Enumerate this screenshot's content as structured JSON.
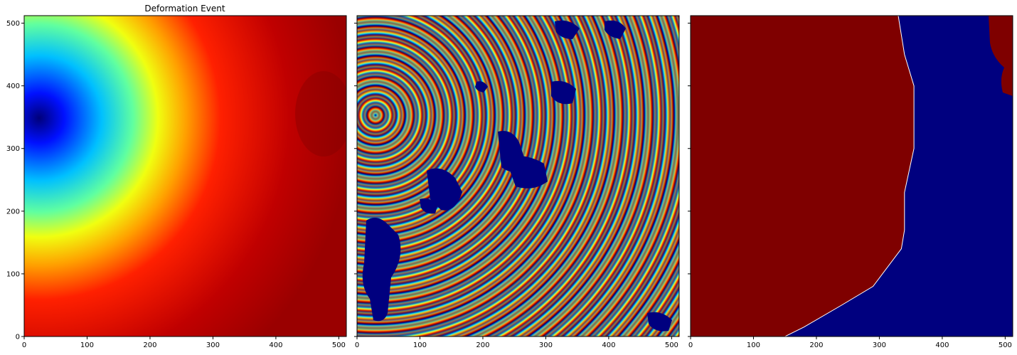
{
  "chart_data": [
    {
      "type": "heatmap",
      "panel": "deformation",
      "title": "Deformation Event",
      "xlim": [
        0,
        512
      ],
      "ylim": [
        0,
        512
      ],
      "x_ticks": [
        0,
        100,
        200,
        300,
        400,
        500
      ],
      "y_ticks": [
        0,
        100,
        200,
        300,
        400,
        500
      ],
      "x_tick_labels": [
        "0",
        "100",
        "200",
        "300",
        "400",
        "500"
      ],
      "y_tick_labels": [
        "0",
        "100",
        "200",
        "300",
        "400",
        "500"
      ],
      "colormap": "jet",
      "source_center": [
        40,
        350
      ]
    },
    {
      "type": "heatmap",
      "panel": "wrapped-interferogram",
      "title": "",
      "xlim": [
        0,
        512
      ],
      "ylim": [
        0,
        512
      ],
      "x_ticks": [
        0,
        100,
        200,
        300,
        400,
        500
      ],
      "y_ticks": [
        0,
        100,
        200,
        300,
        400,
        500
      ],
      "x_tick_labels": [
        "0",
        "100",
        "200",
        "300",
        "400",
        "500"
      ],
      "y_tick_labels": [],
      "colormap": "jet",
      "source_center": [
        30,
        352
      ]
    },
    {
      "type": "heatmap",
      "panel": "binary-mask",
      "title": "",
      "xlim": [
        0,
        512
      ],
      "ylim": [
        0,
        512
      ],
      "x_ticks": [
        0,
        100,
        200,
        300,
        400,
        500
      ],
      "y_ticks": [
        0,
        100,
        200,
        300,
        400,
        500
      ],
      "x_tick_labels": [
        "0",
        "100",
        "200",
        "300",
        "400",
        "500"
      ],
      "y_tick_labels": [],
      "colormap": "jet",
      "boundary": [
        [
          330,
          512
        ],
        [
          340,
          450
        ],
        [
          355,
          400
        ],
        [
          355,
          300
        ],
        [
          340,
          230
        ],
        [
          340,
          170
        ],
        [
          335,
          140
        ],
        [
          290,
          80
        ],
        [
          240,
          50
        ],
        [
          180,
          15
        ],
        [
          150,
          0
        ]
      ]
    }
  ],
  "colors": {
    "dark_red": "#7f0000",
    "dark_blue": "#00007f"
  }
}
